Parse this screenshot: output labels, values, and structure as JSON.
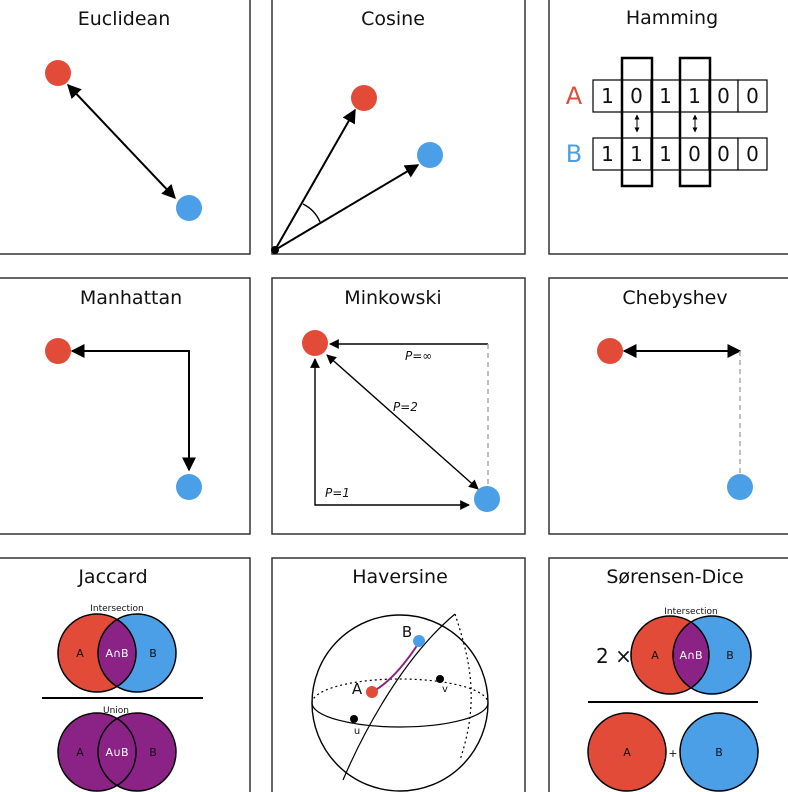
{
  "colors": {
    "point_a": "#e34b39",
    "point_b": "#4b9fe6",
    "overlap": "#8b2386"
  },
  "panels": {
    "euclidean": {
      "title": "Euclidean"
    },
    "cosine": {
      "title": "Cosine"
    },
    "hamming": {
      "title": "Hamming",
      "label_a": "A",
      "label_b": "B",
      "row_a": [
        "1",
        "0",
        "1",
        "1",
        "0",
        "0"
      ],
      "row_b": [
        "1",
        "1",
        "1",
        "0",
        "0",
        "0"
      ]
    },
    "manhattan": {
      "title": "Manhattan"
    },
    "minkowski": {
      "title": "Minkowski",
      "p_inf": "P=∞",
      "p2": "P=2",
      "p1": "P=1"
    },
    "chebyshev": {
      "title": "Chebyshev"
    },
    "jaccard": {
      "title": "Jaccard",
      "intersection_label": "Intersection",
      "union_label": "Union",
      "a": "A",
      "b": "B",
      "a_and_b": "A∩B",
      "a_or_b": "A∪B"
    },
    "haversine": {
      "title": "Haversine",
      "a": "A",
      "b": "B",
      "u": "u",
      "v": "v"
    },
    "sorensen": {
      "title": "Sørensen-Dice",
      "intersection_label": "Intersection",
      "factor": "2 ×",
      "a": "A",
      "b": "B",
      "a_and_b": "A∩B",
      "plus": "+"
    }
  }
}
